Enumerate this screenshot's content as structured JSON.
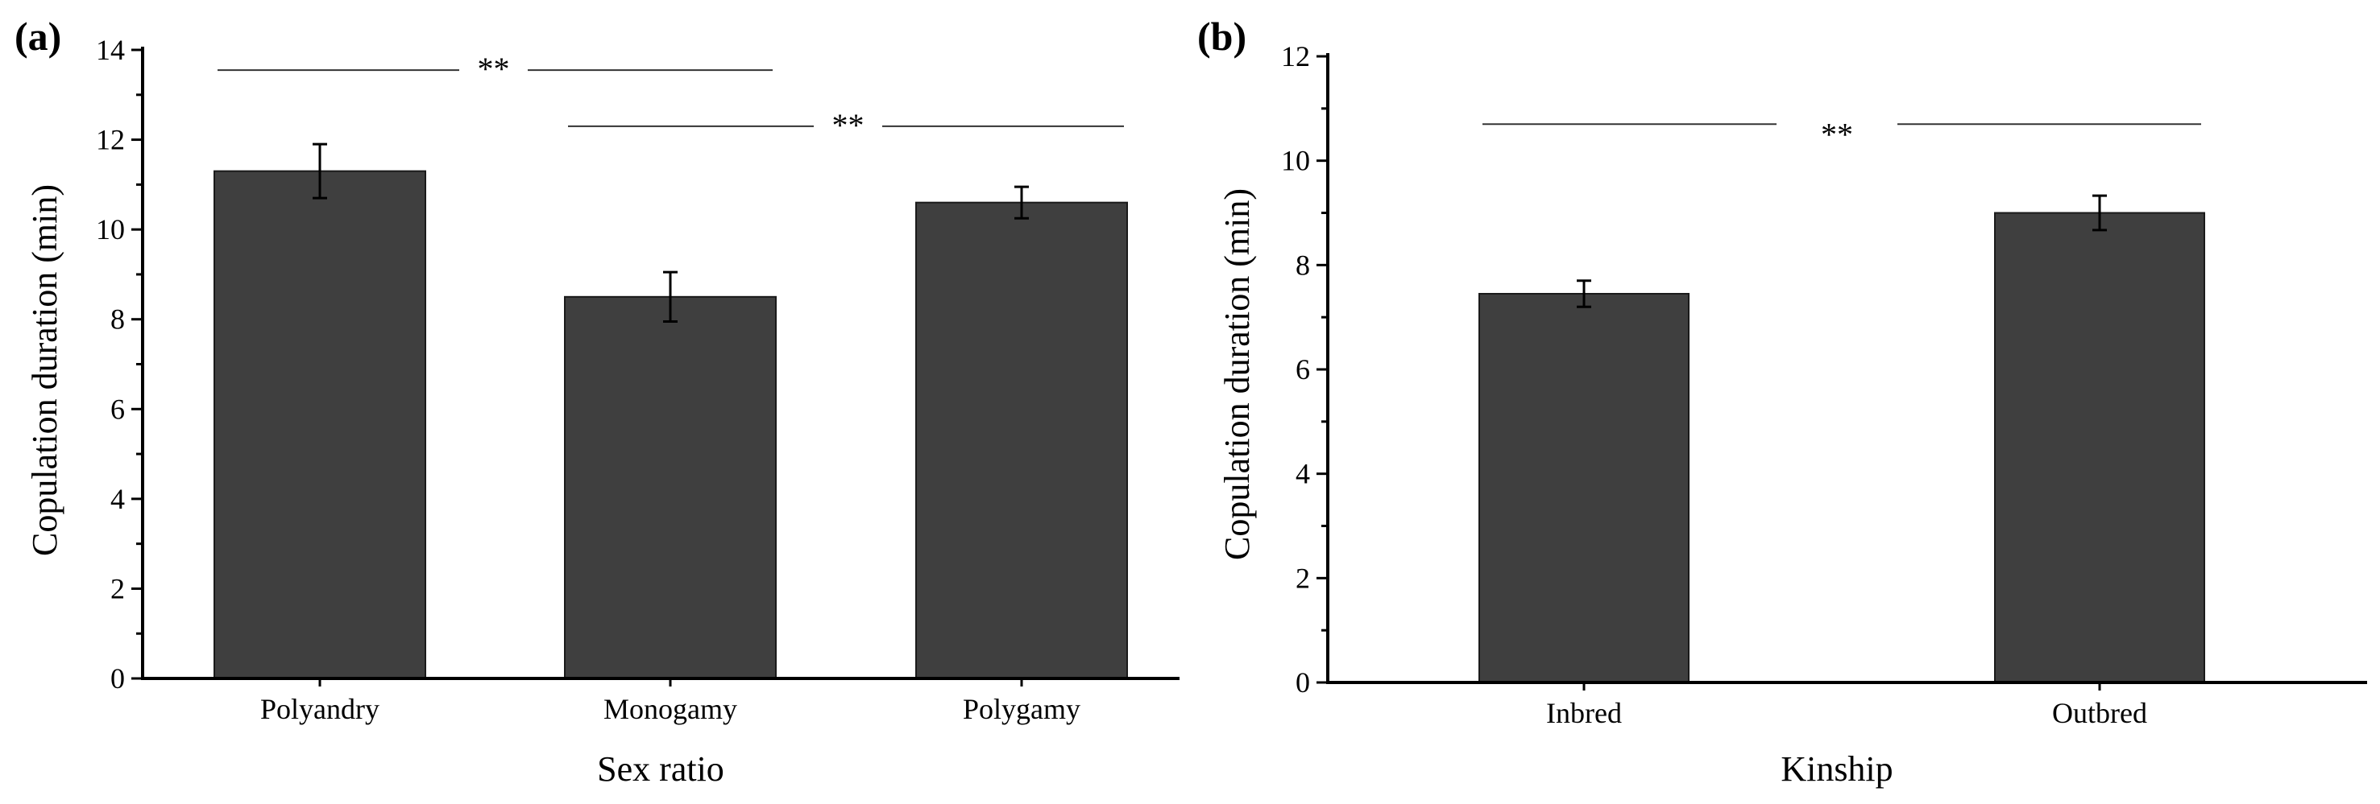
{
  "colors": {
    "bar": "#3f3f3f",
    "axis": "#000000",
    "bracket": "#333333"
  },
  "chart_data": [
    {
      "type": "bar",
      "panel_label": "(a)",
      "title": "",
      "xlabel": "Sex ratio",
      "ylabel": "Copulation duration (min)",
      "ylim": [
        0,
        14
      ],
      "yticks": [
        0,
        2,
        4,
        6,
        8,
        10,
        12,
        14
      ],
      "ytick_labels": [
        "0",
        "2",
        "4",
        "6",
        "8",
        "10",
        "12",
        "14"
      ],
      "categories": [
        "Polyandry",
        "Monogamy",
        "Polygamy"
      ],
      "values": [
        11.3,
        8.5,
        10.6
      ],
      "errors": [
        0.6,
        0.55,
        0.35
      ],
      "significance": [
        {
          "from": 0,
          "to": 1,
          "label": "**",
          "y": 13.55
        },
        {
          "from": 1,
          "to": 2,
          "label": "**",
          "y": 12.3
        }
      ]
    },
    {
      "type": "bar",
      "panel_label": "(b)",
      "title": "",
      "xlabel": "Kinship",
      "ylabel": "Copulation duration (min)",
      "ylim": [
        0,
        12
      ],
      "yticks": [
        0,
        2,
        4,
        6,
        8,
        10,
        12
      ],
      "ytick_labels": [
        "0",
        "2",
        "4",
        "6",
        "8",
        "10",
        "12"
      ],
      "categories": [
        "Inbred",
        "Outbred"
      ],
      "values": [
        7.45,
        9.0
      ],
      "errors": [
        0.25,
        0.33
      ],
      "significance": [
        {
          "from": 0,
          "to": 1,
          "label": "**",
          "y": 10.7
        }
      ]
    }
  ]
}
